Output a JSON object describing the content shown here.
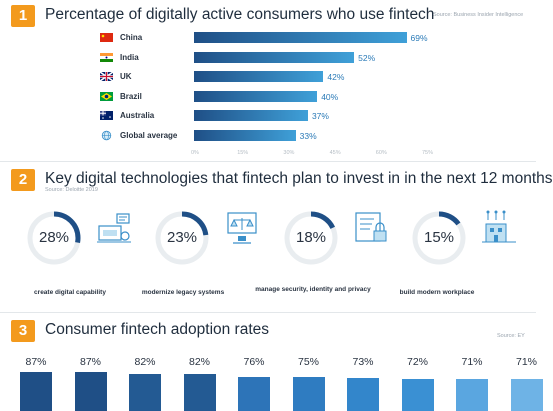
{
  "section1": {
    "number": "1",
    "title": "Percentage of digitally active consumers who use fintech",
    "source": "Source: Business Insider Intelligence"
  },
  "section2": {
    "number": "2",
    "title": "Key digital technologies that fintech plan to invest in in the next 12 months",
    "source": "Source: Deloitte 2019"
  },
  "section3": {
    "number": "3",
    "title": "Consumer fintech adoption rates",
    "source": "Source: EY"
  },
  "colors": {
    "accent_orange": "#f39a1d",
    "bar_dark": "#1f4f86",
    "bar_light": "#3fa0d8",
    "donut_track": "#e9edf0",
    "donut_arc": "#1f4f86"
  },
  "chart_data": [
    {
      "type": "bar",
      "orientation": "horizontal",
      "title": "Percentage of digitally active consumers who use fintech",
      "categories": [
        "China",
        "India",
        "UK",
        "Brazil",
        "Australia",
        "Global average"
      ],
      "values": [
        69,
        52,
        42,
        40,
        37,
        33
      ],
      "value_labels": [
        "69%",
        "52%",
        "42%",
        "40%",
        "37%",
        "33%"
      ],
      "flag_icons": [
        "china-flag-icon",
        "india-flag-icon",
        "uk-flag-icon",
        "brazil-flag-icon",
        "australia-flag-icon",
        "globe-icon"
      ],
      "xlim": [
        0,
        75
      ],
      "ticks": [
        "0%",
        "15%",
        "30%",
        "45%",
        "60%",
        "75%"
      ],
      "tick_values": [
        0,
        15,
        30,
        45,
        60,
        75
      ]
    },
    {
      "type": "pie",
      "variant": "donut",
      "title": "Key digital technologies that fintech plan to invest in in the next 12 months",
      "categories": [
        "create digital capability",
        "modernize legacy systems",
        "manage security, identity and privacy",
        "build modern workplace"
      ],
      "values": [
        28,
        23,
        18,
        15
      ],
      "value_labels": [
        "28%",
        "23%",
        "18%",
        "15%"
      ],
      "icons": [
        "digital-capability-icon",
        "legacy-systems-icon",
        "security-icon",
        "workplace-icon"
      ]
    },
    {
      "type": "bar",
      "orientation": "vertical",
      "title": "Consumer fintech adoption rates",
      "values": [
        87,
        87,
        82,
        82,
        76,
        75,
        73,
        72,
        71,
        71
      ],
      "value_labels": [
        "87%",
        "87%",
        "82%",
        "82%",
        "76%",
        "75%",
        "73%",
        "72%",
        "71%",
        "71%"
      ]
    }
  ]
}
